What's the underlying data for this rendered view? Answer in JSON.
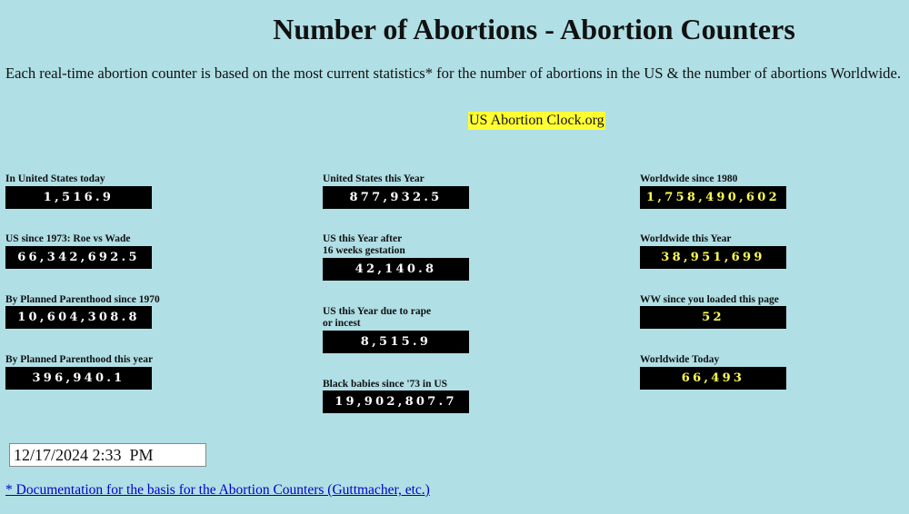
{
  "header": {
    "title": "Number of Abortions - Abortion Counters",
    "intro": "Each real-time abortion counter is based on the most current statistics* for the number of abortions in the US & the number of abortions Worldwide.",
    "site_link": "US Abortion Clock.org"
  },
  "counters": {
    "columns": [
      {
        "items": [
          {
            "label": "In United States today",
            "value": "1,516.9"
          },
          {
            "label": "US since 1973: Roe vs Wade",
            "value": "66,342,692.5"
          },
          {
            "label": "By Planned Parenthood since 1970",
            "value": "10,604,308.8"
          },
          {
            "label": "By Planned Parenthood this year",
            "value": "396,940.1"
          }
        ]
      },
      {
        "items": [
          {
            "label": "United States this Year",
            "value": "877,932.5"
          },
          {
            "label": "US this Year after\n16 weeks gestation",
            "value": "42,140.8"
          },
          {
            "label": "US this Year due to rape\nor incest",
            "value": "8,515.9"
          },
          {
            "label": "Black babies since '73 in US",
            "value": "19,902,807.7"
          }
        ]
      },
      {
        "items": [
          {
            "label": "Worldwide since 1980",
            "value": "1,758,490,602"
          },
          {
            "label": "Worldwide this Year",
            "value": "38,951,699"
          },
          {
            "label": "WW since you loaded this page",
            "value": "52"
          },
          {
            "label": "Worldwide Today",
            "value": "66,493"
          }
        ]
      }
    ]
  },
  "datetime": "12/17/2024 2:33  PM",
  "footer": {
    "link": "* Documentation for the basis for the Abortion Counters (Guttmacher, etc.)"
  }
}
